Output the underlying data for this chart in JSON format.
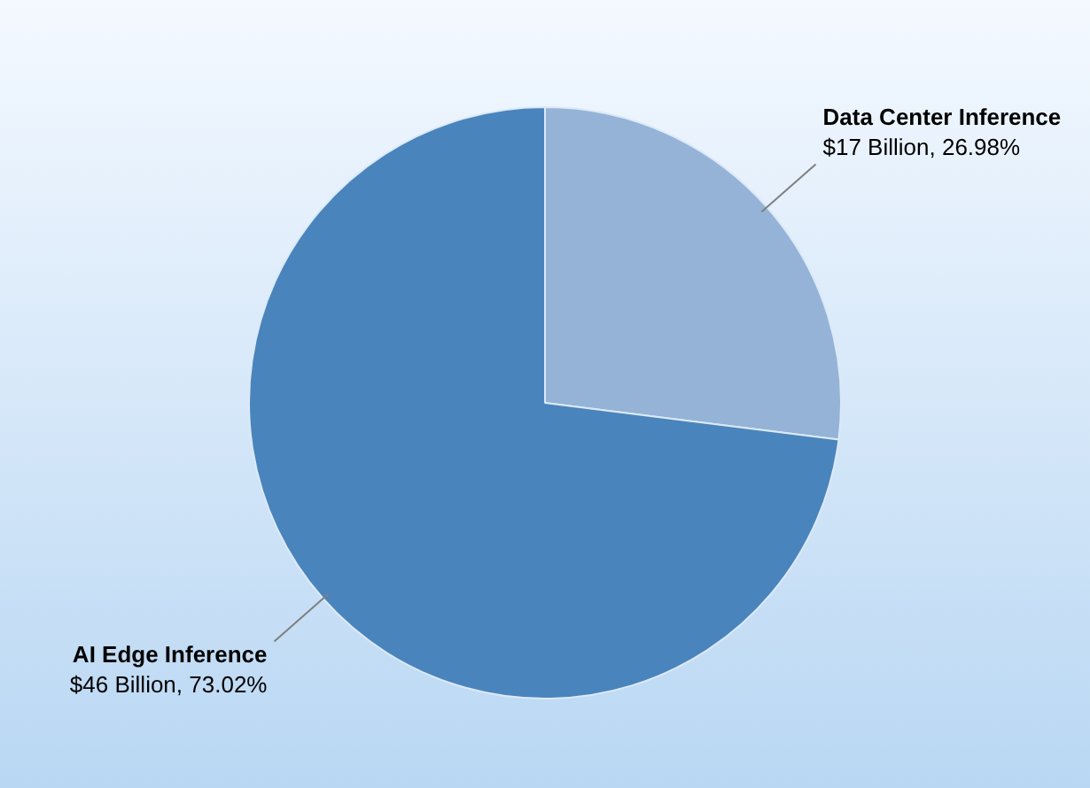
{
  "chart_data": {
    "type": "pie",
    "categories": [
      "Data Center Inference",
      "AI Edge Inference"
    ],
    "values": [
      17,
      46
    ],
    "colors": [
      "#95b3d7",
      "#4a84bc"
    ],
    "value_labels": [
      "$17 Billion, 26.98%",
      "$46 Billion, 73.02%"
    ],
    "legend": false
  }
}
